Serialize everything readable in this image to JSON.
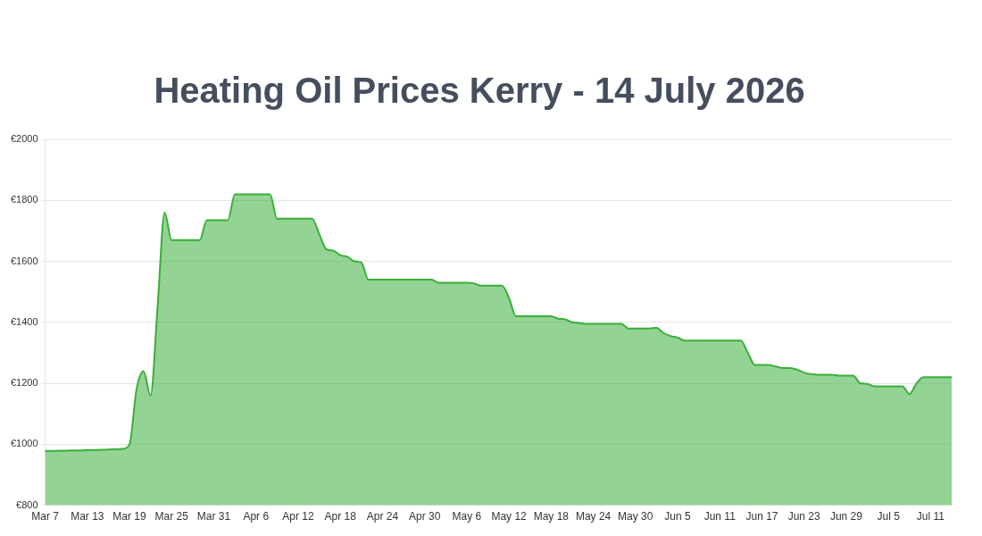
{
  "chart_data": {
    "type": "area",
    "title": "Heating Oil Prices Kerry - 14 July 2026",
    "categories": [
      "Mar 7",
      null,
      null,
      null,
      null,
      null,
      "Mar 13",
      null,
      null,
      null,
      null,
      null,
      "Mar 19",
      null,
      null,
      null,
      null,
      null,
      "Mar 25",
      null,
      null,
      null,
      null,
      null,
      "Mar 31",
      null,
      null,
      null,
      null,
      null,
      "Apr 6",
      null,
      null,
      null,
      null,
      null,
      "Apr 12",
      null,
      null,
      null,
      null,
      null,
      "Apr 18",
      null,
      null,
      null,
      null,
      null,
      "Apr 24",
      null,
      null,
      null,
      null,
      null,
      "Apr 30",
      null,
      null,
      null,
      null,
      null,
      "May 6",
      null,
      null,
      null,
      null,
      null,
      "May 12",
      null,
      null,
      null,
      null,
      null,
      "May 18",
      null,
      null,
      null,
      null,
      null,
      "May 24",
      null,
      null,
      null,
      null,
      null,
      "May 30",
      null,
      null,
      null,
      null,
      null,
      "Jun 5",
      null,
      null,
      null,
      null,
      null,
      "Jun 11",
      null,
      null,
      null,
      null,
      null,
      "Jun 17",
      null,
      null,
      null,
      null,
      null,
      "Jun 23",
      null,
      null,
      null,
      null,
      null,
      "Jun 29",
      null,
      null,
      null,
      null,
      null,
      "Jul 5",
      null,
      null,
      null,
      null,
      null,
      "Jul 11",
      null,
      null,
      null
    ],
    "series": [
      {
        "color": "#3aae3a",
        "values": [
          978,
          978,
          979,
          979,
          980,
          980,
          981,
          981,
          982,
          983,
          984,
          985,
          1000,
          1180,
          1240,
          1160,
          1450,
          1760,
          1670,
          1670,
          1670,
          1670,
          1670,
          1735,
          1735,
          1735,
          1735,
          1820,
          1820,
          1820,
          1820,
          1820,
          1820,
          1740,
          1740,
          1740,
          1740,
          1740,
          1740,
          1690,
          1640,
          1635,
          1620,
          1615,
          1600,
          1596,
          1540,
          1540,
          1540,
          1540,
          1540,
          1540,
          1540,
          1540,
          1540,
          1540,
          1530,
          1530,
          1530,
          1530,
          1530,
          1528,
          1520,
          1520,
          1520,
          1520,
          1480,
          1420,
          1420,
          1420,
          1420,
          1420,
          1420,
          1412,
          1410,
          1400,
          1398,
          1395,
          1395,
          1395,
          1395,
          1395,
          1395,
          1380,
          1380,
          1380,
          1380,
          1382,
          1365,
          1355,
          1350,
          1340,
          1340,
          1340,
          1340,
          1340,
          1340,
          1340,
          1340,
          1340,
          1300,
          1260,
          1260,
          1260,
          1255,
          1250,
          1250,
          1245,
          1235,
          1230,
          1228,
          1228,
          1228,
          1225,
          1225,
          1225,
          1200,
          1198,
          1190,
          1190,
          1190,
          1190,
          1190,
          1165,
          1200,
          1220,
          1220,
          1220,
          1220,
          1220
        ]
      }
    ],
    "ylim": [
      800,
      2000
    ],
    "yticks": [
      {
        "value": 800,
        "label": "€800"
      },
      {
        "value": 1000,
        "label": "€1000"
      },
      {
        "value": 1200,
        "label": "€1200"
      },
      {
        "value": 1400,
        "label": "€1400"
      },
      {
        "value": 1600,
        "label": "€1600"
      },
      {
        "value": 1800,
        "label": "€1800"
      },
      {
        "value": 2000,
        "label": "€2000"
      }
    ],
    "grid": "y",
    "legend": false,
    "marker": "none",
    "line_style": "solid"
  }
}
